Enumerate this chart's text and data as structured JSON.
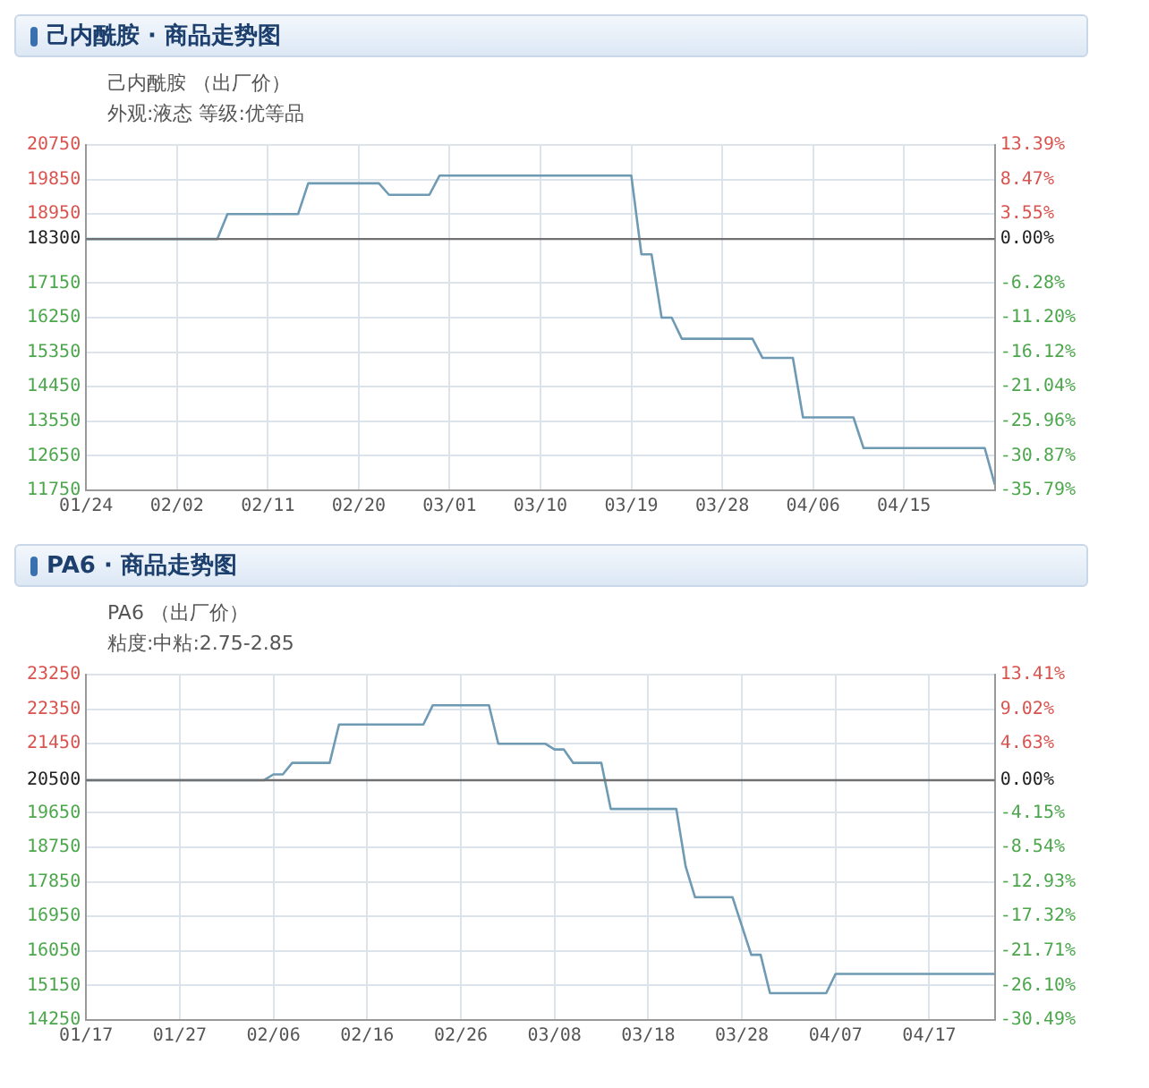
{
  "chart_data": [
    {
      "type": "line",
      "title": "己内酰胺 · 商品走势图",
      "subtitle": "己内酰胺 （出厂价）",
      "annotations": [
        "外观:液态 等级:优等品"
      ],
      "x": [
        "--01-24",
        "--02-06",
        "--02-07",
        "--02-14",
        "--02-15",
        "--02-22",
        "--02-23",
        "--02-27",
        "--02-28",
        "--03-19",
        "--03-20",
        "--03-21",
        "--03-22",
        "--03-23",
        "--03-24",
        "--03-31",
        "--04-01",
        "--04-04",
        "--04-05",
        "--04-10",
        "--04-11",
        "--04-23",
        "--04-24"
      ],
      "series": [
        {
          "color": "#6f9ab4",
          "values": [
            18300,
            18300,
            18950,
            18950,
            19750,
            19750,
            19450,
            19450,
            19950,
            19950,
            17900,
            17900,
            16250,
            16250,
            15700,
            15700,
            15200,
            15200,
            13650,
            13650,
            12850,
            12850,
            11900
          ]
        }
      ],
      "xlim": [
        "--01-24",
        "--04-24"
      ],
      "xticks": [
        {
          "value": "--01-24",
          "label": "01/24"
        },
        {
          "value": "--02-02",
          "label": "02/02"
        },
        {
          "value": "--02-11",
          "label": "02/11"
        },
        {
          "value": "--02-20",
          "label": "02/20"
        },
        {
          "value": "--03-01",
          "label": "03/01"
        },
        {
          "value": "--03-10",
          "label": "03/10"
        },
        {
          "value": "--03-19",
          "label": "03/19"
        },
        {
          "value": "--03-28",
          "label": "03/28"
        },
        {
          "value": "--04-06",
          "label": "04/06"
        },
        {
          "value": "--04-15",
          "label": "04/15"
        }
      ],
      "ylim": [
        11750,
        20750
      ],
      "yticks": [
        11750,
        12650,
        13550,
        14450,
        15350,
        16250,
        17150,
        18300,
        18950,
        19850,
        20750
      ],
      "y2lim": [
        -35.79,
        13.39
      ],
      "y2ticks": [
        {
          "value": -35.79,
          "label": "-35.79%"
        },
        {
          "value": -30.87,
          "label": "-30.87%"
        },
        {
          "value": -25.96,
          "label": "-25.96%"
        },
        {
          "value": -21.04,
          "label": "-21.04%"
        },
        {
          "value": -16.12,
          "label": "-16.12%"
        },
        {
          "value": -11.2,
          "label": "-11.20%"
        },
        {
          "value": -6.28,
          "label": "-6.28%"
        },
        {
          "value": 0,
          "label": "0.00%"
        },
        {
          "value": 3.55,
          "label": "3.55%"
        },
        {
          "value": 8.47,
          "label": "8.47%"
        },
        {
          "value": 13.39,
          "label": "13.39%"
        }
      ],
      "ref_lines": [
        {
          "axis": "y",
          "value": 18300,
          "color": "#707070"
        }
      ],
      "grid": true,
      "legend": false,
      "marker": "none",
      "line_style": "solid"
    },
    {
      "type": "line",
      "title": "PA6 · 商品走势图",
      "subtitle": "PA6 （出厂价）",
      "annotations": [
        "粘度:中粘:2.75-2.85"
      ],
      "x": [
        "--01-17",
        "--02-05",
        "--02-06",
        "--02-07",
        "--02-08",
        "--02-12",
        "--02-13",
        "--02-22",
        "--02-23",
        "--03-01",
        "--03-02",
        "--03-07",
        "--03-08",
        "--03-09",
        "--03-10",
        "--03-13",
        "--03-14",
        "--03-21",
        "--03-22",
        "--03-23",
        "--03-27",
        "--03-29",
        "--03-30",
        "--03-31",
        "--04-06",
        "--04-07",
        "--04-24"
      ],
      "series": [
        {
          "color": "#6f9ab4",
          "values": [
            20500,
            20500,
            20650,
            20650,
            20950,
            20950,
            21950,
            21950,
            22450,
            22450,
            21450,
            21450,
            21300,
            21300,
            20950,
            20950,
            19750,
            19750,
            18250,
            17450,
            17450,
            15950,
            15950,
            14950,
            14950,
            15450,
            15450
          ]
        }
      ],
      "xlim": [
        "--01-17",
        "--04-24"
      ],
      "xticks": [
        {
          "value": "--01-17",
          "label": "01/17"
        },
        {
          "value": "--01-27",
          "label": "01/27"
        },
        {
          "value": "--02-06",
          "label": "02/06"
        },
        {
          "value": "--02-16",
          "label": "02/16"
        },
        {
          "value": "--02-26",
          "label": "02/26"
        },
        {
          "value": "--03-08",
          "label": "03/08"
        },
        {
          "value": "--03-18",
          "label": "03/18"
        },
        {
          "value": "--03-28",
          "label": "03/28"
        },
        {
          "value": "--04-07",
          "label": "04/07"
        },
        {
          "value": "--04-17",
          "label": "04/17"
        }
      ],
      "ylim": [
        14250,
        23250
      ],
      "yticks": [
        14250,
        15150,
        16050,
        16950,
        17850,
        18750,
        19650,
        20500,
        21450,
        22350,
        23250
      ],
      "y2lim": [
        -30.49,
        13.41
      ],
      "y2ticks": [
        {
          "value": -30.49,
          "label": "-30.49%"
        },
        {
          "value": -26.1,
          "label": "-26.10%"
        },
        {
          "value": -21.71,
          "label": "-21.71%"
        },
        {
          "value": -17.32,
          "label": "-17.32%"
        },
        {
          "value": -12.93,
          "label": "-12.93%"
        },
        {
          "value": -8.54,
          "label": "-8.54%"
        },
        {
          "value": -4.15,
          "label": "-4.15%"
        },
        {
          "value": 0,
          "label": "0.00%"
        },
        {
          "value": 4.63,
          "label": "4.63%"
        },
        {
          "value": 9.02,
          "label": "9.02%"
        },
        {
          "value": 13.41,
          "label": "13.41%"
        }
      ],
      "ref_lines": [
        {
          "axis": "y",
          "value": 20500,
          "color": "#707070"
        }
      ],
      "grid": true,
      "legend": false,
      "marker": "none",
      "line_style": "solid"
    }
  ]
}
